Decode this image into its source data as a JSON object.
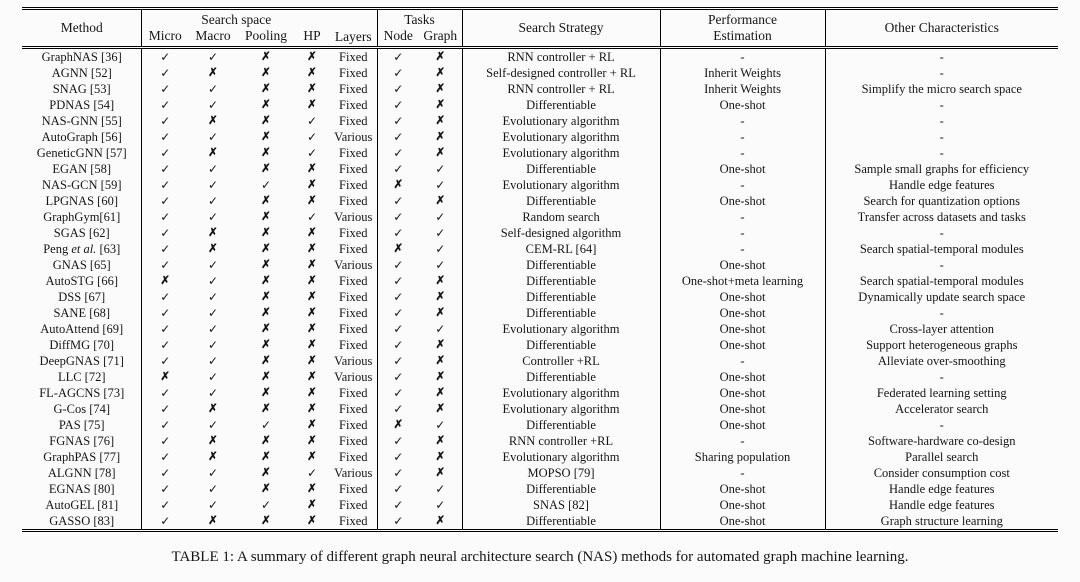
{
  "table": {
    "headers": {
      "method": "Method",
      "search_space_group": "Search space",
      "micro": "Micro",
      "macro": "Macro",
      "pooling": "Pooling",
      "hp": "HP",
      "layers": "Layers",
      "tasks_group": "Tasks",
      "node": "Node",
      "graph": "Graph",
      "search_strategy": "Search Strategy",
      "performance_estimation_line1": "Performance",
      "performance_estimation_line2": "Estimation",
      "other_characteristics": "Other Characteristics"
    },
    "symbols": {
      "yes": "✓",
      "no": "✗"
    },
    "rows": [
      {
        "method": "GraphNAS [36]",
        "micro": "✓",
        "macro": "✓",
        "pooling": "✗",
        "hp": "✗",
        "layers": "Fixed",
        "node": "✓",
        "graph": "✗",
        "strategy": "RNN controller + RL",
        "perf": "-",
        "other": "-"
      },
      {
        "method": "AGNN [52]",
        "micro": "✓",
        "macro": "✗",
        "pooling": "✗",
        "hp": "✗",
        "layers": "Fixed",
        "node": "✓",
        "graph": "✗",
        "strategy": "Self-designed controller + RL",
        "perf": "Inherit Weights",
        "other": "-"
      },
      {
        "method": "SNAG [53]",
        "micro": "✓",
        "macro": "✓",
        "pooling": "✗",
        "hp": "✗",
        "layers": "Fixed",
        "node": "✓",
        "graph": "✗",
        "strategy": "RNN controller + RL",
        "perf": "Inherit Weights",
        "other": "Simplify the micro search space"
      },
      {
        "method": "PDNAS [54]",
        "micro": "✓",
        "macro": "✓",
        "pooling": "✗",
        "hp": "✗",
        "layers": "Fixed",
        "node": "✓",
        "graph": "✗",
        "strategy": "Differentiable",
        "perf": "One-shot",
        "other": "-"
      },
      {
        "method": "NAS-GNN [55]",
        "micro": "✓",
        "macro": "✗",
        "pooling": "✗",
        "hp": "✓",
        "layers": "Fixed",
        "node": "✓",
        "graph": "✗",
        "strategy": "Evolutionary algorithm",
        "perf": "-",
        "other": "-"
      },
      {
        "method": "AutoGraph [56]",
        "micro": "✓",
        "macro": "✓",
        "pooling": "✗",
        "hp": "✓",
        "layers": "Various",
        "node": "✓",
        "graph": "✗",
        "strategy": "Evolutionary algorithm",
        "perf": "-",
        "other": "-"
      },
      {
        "method": "GeneticGNN [57]",
        "micro": "✓",
        "macro": "✗",
        "pooling": "✗",
        "hp": "✓",
        "layers": "Fixed",
        "node": "✓",
        "graph": "✗",
        "strategy": "Evolutionary algorithm",
        "perf": "-",
        "other": "-"
      },
      {
        "method": "EGAN [58]",
        "micro": "✓",
        "macro": "✓",
        "pooling": "✗",
        "hp": "✗",
        "layers": "Fixed",
        "node": "✓",
        "graph": "✓",
        "strategy": "Differentiable",
        "perf": "One-shot",
        "other": "Sample small graphs for efficiency"
      },
      {
        "method": "NAS-GCN [59]",
        "micro": "✓",
        "macro": "✓",
        "pooling": "✓",
        "hp": "✗",
        "layers": "Fixed",
        "node": "✗",
        "graph": "✓",
        "strategy": "Evolutionary algorithm",
        "perf": "-",
        "other": "Handle edge features"
      },
      {
        "method": "LPGNAS [60]",
        "micro": "✓",
        "macro": "✓",
        "pooling": "✗",
        "hp": "✗",
        "layers": "Fixed",
        "node": "✓",
        "graph": "✗",
        "strategy": "Differentiable",
        "perf": "One-shot",
        "other": "Search for quantization options"
      },
      {
        "method": "GraphGym[61]",
        "micro": "✓",
        "macro": "✓",
        "pooling": "✗",
        "hp": "✓",
        "layers": "Various",
        "node": "✓",
        "graph": "✓",
        "strategy": "Random search",
        "perf": "-",
        "other": "Transfer across datasets and tasks"
      },
      {
        "method": "SGAS [62]",
        "micro": "✓",
        "macro": "✗",
        "pooling": "✗",
        "hp": "✗",
        "layers": "Fixed",
        "node": "✓",
        "graph": "✓",
        "strategy": "Self-designed algorithm",
        "perf": "-",
        "other": "-"
      },
      {
        "method": "Peng et al. [63]",
        "micro": "✓",
        "macro": "✗",
        "pooling": "✗",
        "hp": "✗",
        "layers": "Fixed",
        "node": "✗",
        "graph": "✓",
        "strategy": "CEM-RL [64]",
        "perf": "-",
        "other": "Search spatial-temporal modules"
      },
      {
        "method": "GNAS [65]",
        "micro": "✓",
        "macro": "✓",
        "pooling": "✗",
        "hp": "✗",
        "layers": "Various",
        "node": "✓",
        "graph": "✓",
        "strategy": "Differentiable",
        "perf": "One-shot",
        "other": "-"
      },
      {
        "method": "AutoSTG [66]",
        "micro": "✗",
        "macro": "✓",
        "pooling": "✗",
        "hp": "✗",
        "layers": "Fixed",
        "node": "✓",
        "graph": "✗",
        "strategy": "Differentiable",
        "perf": "One-shot+meta learning",
        "other": "Search spatial-temporal modules"
      },
      {
        "method": "DSS [67]",
        "micro": "✓",
        "macro": "✓",
        "pooling": "✗",
        "hp": "✗",
        "layers": "Fixed",
        "node": "✓",
        "graph": "✗",
        "strategy": "Differentiable",
        "perf": "One-shot",
        "other": "Dynamically update search space"
      },
      {
        "method": "SANE [68]",
        "micro": "✓",
        "macro": "✓",
        "pooling": "✗",
        "hp": "✗",
        "layers": "Fixed",
        "node": "✓",
        "graph": "✗",
        "strategy": "Differentiable",
        "perf": "One-shot",
        "other": "-"
      },
      {
        "method": "AutoAttend [69]",
        "micro": "✓",
        "macro": "✓",
        "pooling": "✗",
        "hp": "✗",
        "layers": "Fixed",
        "node": "✓",
        "graph": "✓",
        "strategy": "Evolutionary algorithm",
        "perf": "One-shot",
        "other": "Cross-layer attention"
      },
      {
        "method": "DiffMG [70]",
        "micro": "✓",
        "macro": "✓",
        "pooling": "✗",
        "hp": "✗",
        "layers": "Fixed",
        "node": "✓",
        "graph": "✗",
        "strategy": "Differentiable",
        "perf": "One-shot",
        "other": "Support heterogeneous graphs"
      },
      {
        "method": "DeepGNAS [71]",
        "micro": "✓",
        "macro": "✓",
        "pooling": "✗",
        "hp": "✗",
        "layers": "Various",
        "node": "✓",
        "graph": "✗",
        "strategy": "Controller +RL",
        "perf": "-",
        "other": "Alleviate over-smoothing"
      },
      {
        "method": "LLC [72]",
        "micro": "✗",
        "macro": "✓",
        "pooling": "✗",
        "hp": "✗",
        "layers": "Various",
        "node": "✓",
        "graph": "✗",
        "strategy": "Differentiable",
        "perf": "One-shot",
        "other": "-"
      },
      {
        "method": "FL-AGCNS [73]",
        "micro": "✓",
        "macro": "✓",
        "pooling": "✗",
        "hp": "✗",
        "layers": "Fixed",
        "node": "✓",
        "graph": "✗",
        "strategy": "Evolutionary algorithm",
        "perf": "One-shot",
        "other": "Federated learning setting"
      },
      {
        "method": "G-Cos [74]",
        "micro": "✓",
        "macro": "✗",
        "pooling": "✗",
        "hp": "✗",
        "layers": "Fixed",
        "node": "✓",
        "graph": "✗",
        "strategy": "Evolutionary algorithm",
        "perf": "One-shot",
        "other": "Accelerator search"
      },
      {
        "method": "PAS [75]",
        "micro": "✓",
        "macro": "✓",
        "pooling": "✓",
        "hp": "✗",
        "layers": "Fixed",
        "node": "✗",
        "graph": "✓",
        "strategy": "Differentiable",
        "perf": "One-shot",
        "other": "-"
      },
      {
        "method": "FGNAS [76]",
        "micro": "✓",
        "macro": "✗",
        "pooling": "✗",
        "hp": "✗",
        "layers": "Fixed",
        "node": "✓",
        "graph": "✗",
        "strategy": "RNN controller +RL",
        "perf": "-",
        "other": "Software-hardware co-design"
      },
      {
        "method": "GraphPAS [77]",
        "micro": "✓",
        "macro": "✗",
        "pooling": "✗",
        "hp": "✗",
        "layers": "Fixed",
        "node": "✓",
        "graph": "✗",
        "strategy": "Evolutionary algorithm",
        "perf": "Sharing population",
        "other": "Parallel search"
      },
      {
        "method": "ALGNN [78]",
        "micro": "✓",
        "macro": "✓",
        "pooling": "✗",
        "hp": "✓",
        "layers": "Various",
        "node": "✓",
        "graph": "✗",
        "strategy": "MOPSO [79]",
        "perf": "-",
        "other": "Consider consumption cost"
      },
      {
        "method": "EGNAS [80]",
        "micro": "✓",
        "macro": "✓",
        "pooling": "✗",
        "hp": "✗",
        "layers": "Fixed",
        "node": "✓",
        "graph": "✓",
        "strategy": "Differentiable",
        "perf": "One-shot",
        "other": "Handle edge features"
      },
      {
        "method": "AutoGEL [81]",
        "micro": "✓",
        "macro": "✓",
        "pooling": "✓",
        "hp": "✗",
        "layers": "Fixed",
        "node": "✓",
        "graph": "✓",
        "strategy": "SNAS [82]",
        "perf": "One-shot",
        "other": "Handle edge features"
      },
      {
        "method": "GASSO [83]",
        "micro": "✓",
        "macro": "✗",
        "pooling": "✗",
        "hp": "✗",
        "layers": "Fixed",
        "node": "✓",
        "graph": "✗",
        "strategy": "Differentiable",
        "perf": "One-shot",
        "other": "Graph structure learning"
      }
    ]
  },
  "caption": "TABLE 1: A summary of different graph neural architecture search (NAS) methods for automated graph machine learning."
}
